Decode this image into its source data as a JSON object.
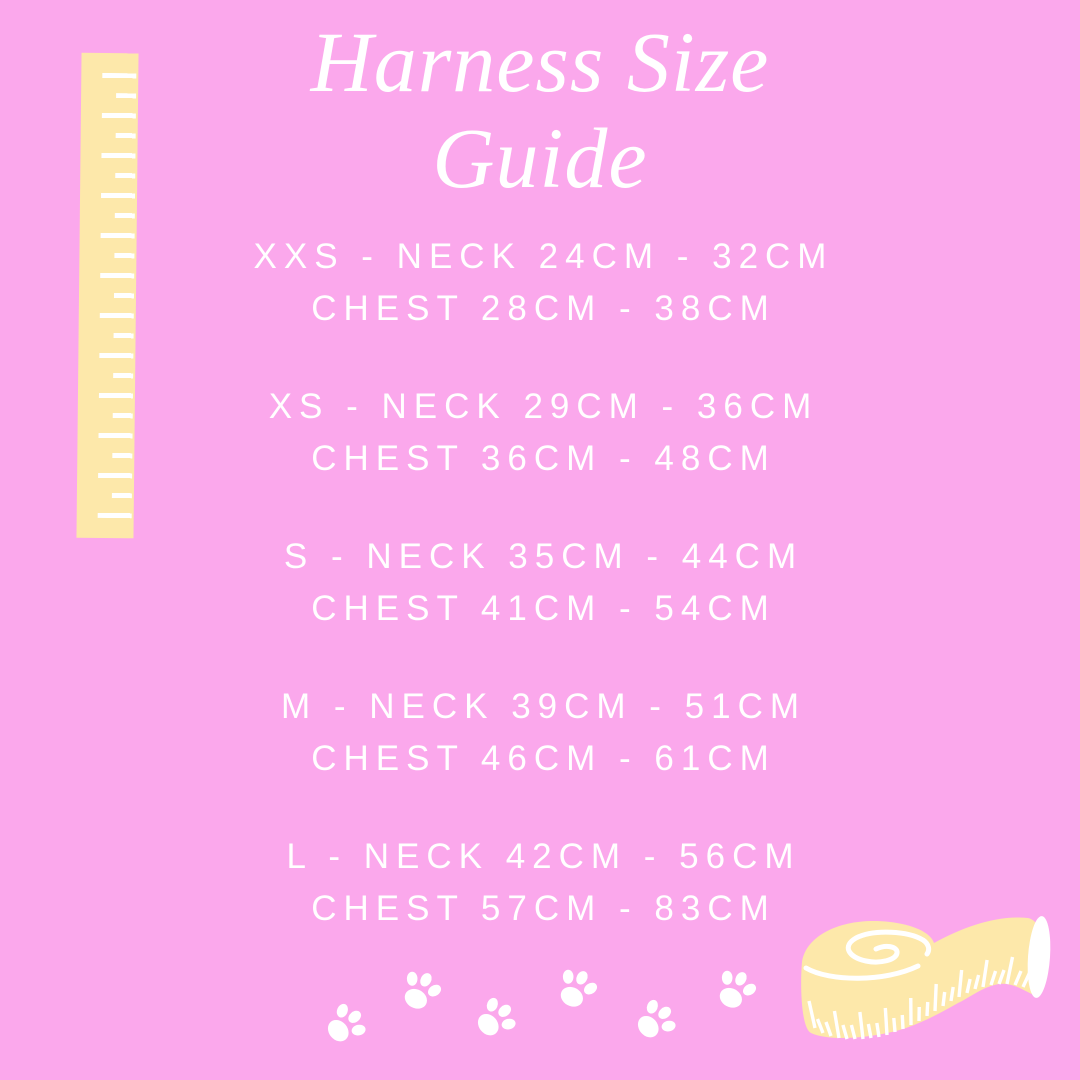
{
  "canvas": {
    "background_color": "#fba8ec",
    "illustration_color": "#fde8aa",
    "text_color": "#ffffff"
  },
  "title": {
    "line1": "Harness Size",
    "line2": "Guide"
  },
  "sizes": [
    {
      "label": "XXS",
      "line1": "XXS - NECK 24CM - 32CM",
      "line2": "CHEST 28CM - 38CM"
    },
    {
      "label": "XS",
      "line1": "XS - NECK 29CM - 36CM",
      "line2": "CHEST 36CM - 48CM"
    },
    {
      "label": "S",
      "line1": "S - NECK 35CM - 44CM",
      "line2": "CHEST 41CM - 54CM"
    },
    {
      "label": "M",
      "line1": "M - NECK 39CM - 51CM",
      "line2": "CHEST 46CM - 61CM"
    },
    {
      "label": "L",
      "line1": "L - NECK 42CM - 56CM",
      "line2": "CHEST 57CM - 83CM"
    }
  ],
  "decorations": {
    "ruler": "ruler-illustration",
    "measuring_tape": "measuring-tape-illustration",
    "paw_print_count": 6
  }
}
